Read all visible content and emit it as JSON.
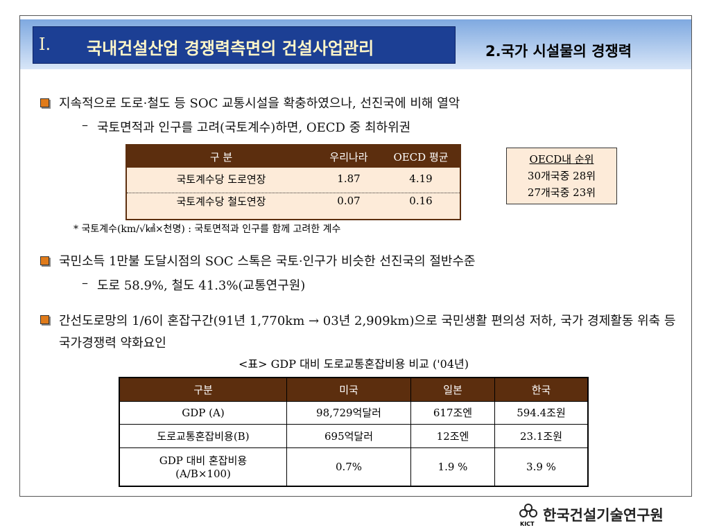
{
  "header": {
    "section": "I.",
    "title": "국내건설산업 경쟁력측면의 건설사업관리",
    "subtitle": "2.국가 시설물의 경쟁력"
  },
  "bullets": [
    {
      "text": "지속적으로 도로·철도 등 SOC 교통시설을 확충하였으나, 선진국에 비해 열악",
      "sub": "국토면적과 인구를 고려(국토계수)하면,  OECD 중 최하위권"
    },
    {
      "text": "국민소득 1만불 도달시점의 SOC 스톡은 국토·인구가 비슷한 선진국의 절반수준",
      "sub": "도로 58.9%, 철도 41.3%(교통연구원)"
    },
    {
      "text": "간선도로망의 1/6이 혼잡구간(91년 1,770km → 03년 2,909km)으로 국민생활 편의성 저하, 국가 경제활동 위축 등 국가경쟁력 약화요인"
    }
  ],
  "dash": "–",
  "table1": {
    "header": [
      "구  분",
      "우리나라",
      "OECD 평균"
    ],
    "rows": [
      [
        "국토계수당 도로연장",
        "1.87",
        "4.19"
      ],
      [
        "국토계수당 철도연장",
        "0.07",
        "0.16"
      ]
    ]
  },
  "rank_box": [
    "OECD내 순위",
    "30개국중 28위",
    "27개국중 23위"
  ],
  "footnote": "* 국토계수(km/√㎢×천명) : 국토면적과 인구를 함께 고려한 계수",
  "table2": {
    "caption": "<표> GDP 대비 도로교통혼잡비용 비교 ('04년)",
    "header": [
      "구분",
      "미국",
      "일본",
      "한국"
    ],
    "rows": [
      [
        "GDP (A)",
        "98,729억달러",
        "617조엔",
        "594.4조원"
      ],
      [
        "도로교통혼잡비용(B)",
        "695억달러",
        "12조엔",
        "23.1조원"
      ],
      [
        "GDP 대비 혼잡비용 (A/B×100)",
        "0.7%",
        "1.9 %",
        "3.9 %"
      ]
    ]
  },
  "footer": {
    "logo_sub": "KICT",
    "org": "한국건설기술연구원"
  }
}
